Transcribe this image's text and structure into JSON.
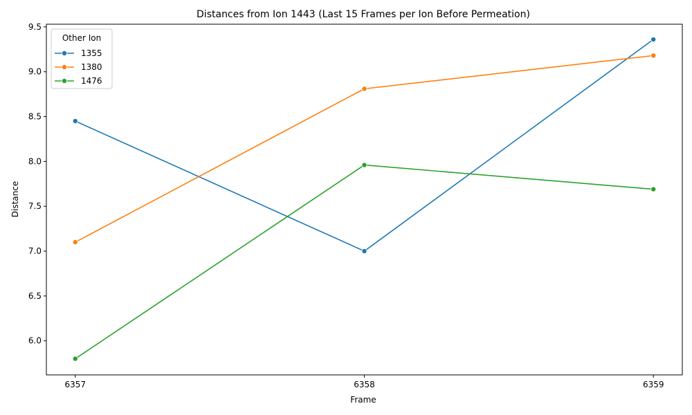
{
  "chart_data": {
    "type": "line",
    "title": "Distances from Ion 1443 (Last 15 Frames per Ion Before Permeation)",
    "xlabel": "Frame",
    "ylabel": "Distance",
    "x": [
      6357,
      6358,
      6359
    ],
    "x_tick_labels": [
      "6357",
      "6358",
      "6359"
    ],
    "xlim": [
      6356.9,
      6359.1
    ],
    "ylim": [
      5.62,
      9.53
    ],
    "y_ticks": [
      6.0,
      6.5,
      7.0,
      7.5,
      8.0,
      8.5,
      9.0,
      9.5
    ],
    "y_tick_labels": [
      "6.0",
      "6.5",
      "7.0",
      "7.5",
      "8.0",
      "8.5",
      "9.0",
      "9.5"
    ],
    "grid": false,
    "legend": {
      "title": "Other Ion",
      "placement": "top-left"
    },
    "series": [
      {
        "name": "1355",
        "color": "#1f77b4",
        "values": [
          8.45,
          7.0,
          9.36
        ]
      },
      {
        "name": "1380",
        "color": "#ff7f0e",
        "values": [
          7.1,
          8.81,
          9.18
        ]
      },
      {
        "name": "1476",
        "color": "#2ca02c",
        "values": [
          5.8,
          7.96,
          7.69
        ]
      }
    ]
  }
}
